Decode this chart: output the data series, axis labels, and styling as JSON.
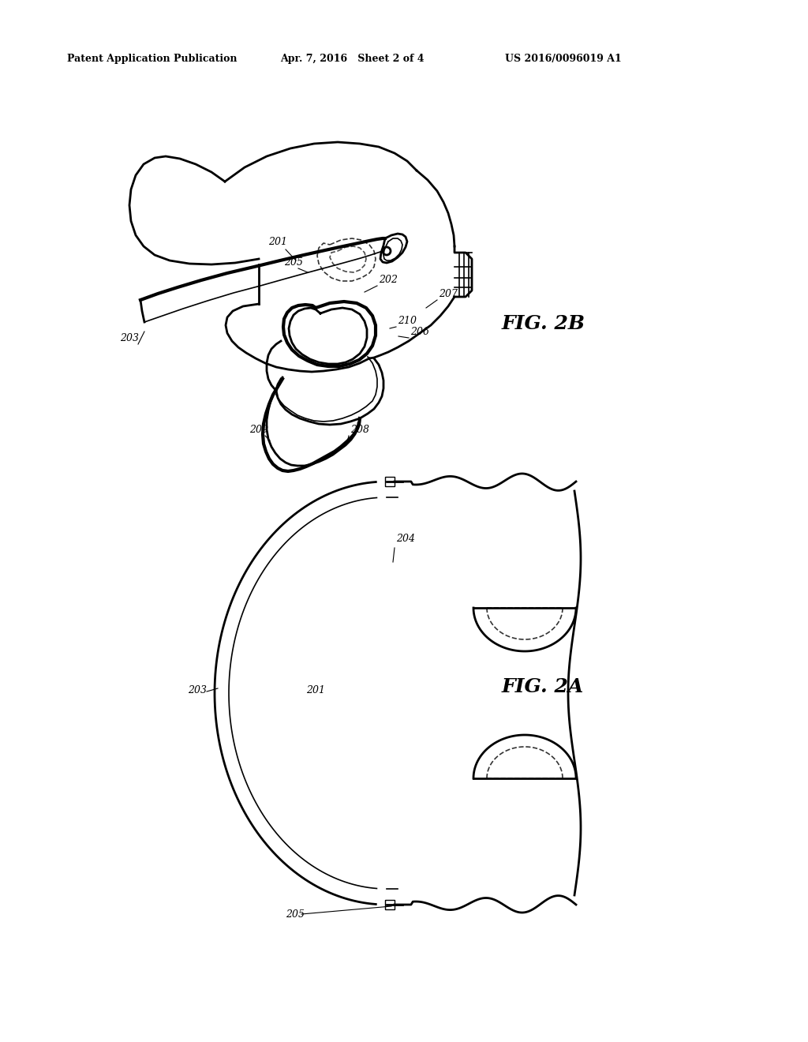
{
  "bg_color": "#ffffff",
  "line_color": "#000000",
  "header_left": "Patent Application Publication",
  "header_mid": "Apr. 7, 2016   Sheet 2 of 4",
  "header_right": "US 2016/0096019 A1",
  "fig2b_label": "FIG. 2B",
  "fig2a_label": "FIG. 2A"
}
